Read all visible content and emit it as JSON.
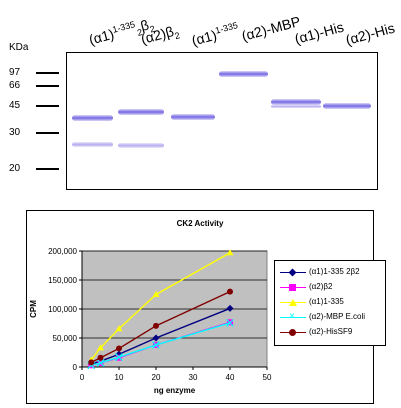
{
  "gel": {
    "unit_label": "KDa",
    "lanes": [
      {
        "main": "(α1)",
        "sup": "1-335",
        "sub": "2",
        "tail": "β",
        "tail_sub": "2"
      },
      {
        "main": "(α2)β",
        "sup": "",
        "sub": "2",
        "tail": "",
        "tail_sub": ""
      },
      {
        "main": "(α1)",
        "sup": "1-335",
        "sub": "",
        "tail": "",
        "tail_sub": ""
      },
      {
        "main": "(α2)-MBP",
        "sup": "",
        "sub": "",
        "tail": "",
        "tail_sub": ""
      },
      {
        "main": "(α1)-His",
        "sup": "",
        "sub": "",
        "tail": "",
        "tail_sub": ""
      },
      {
        "main": "(α2)-His",
        "sup": "",
        "sub": "",
        "tail": "",
        "tail_sub": ""
      }
    ],
    "markers": [
      "97",
      "66",
      "45",
      "30",
      "20"
    ]
  },
  "chart_data": {
    "type": "line",
    "title": "CK2 Activity",
    "xlabel": "ng enzyme",
    "ylabel": "CPM",
    "xlim": [
      0,
      50
    ],
    "ylim": [
      0,
      200000
    ],
    "x_ticks": [
      "0",
      "10",
      "20",
      "30",
      "40",
      "50"
    ],
    "y_ticks": [
      "0",
      "50,000",
      "100,000",
      "150,000",
      "200,000"
    ],
    "grid": true,
    "legend_position": "right",
    "plot_background": "#c0c0c0",
    "series": [
      {
        "name": "(α1)1-335 2β2",
        "color": "#000080",
        "marker": "diamond",
        "x": [
          2.5,
          5,
          10,
          20,
          40
        ],
        "y": [
          5000,
          10000,
          22000,
          50000,
          101000
        ]
      },
      {
        "name": "(α2)β2",
        "color": "#ff00ff",
        "marker": "square",
        "x": [
          2.5,
          5,
          10,
          20,
          40
        ],
        "y": [
          3000,
          7000,
          16000,
          38000,
          77000
        ]
      },
      {
        "name": "(α1)1-335",
        "color": "#ffff00",
        "marker": "triangle",
        "x": [
          2.5,
          5,
          10,
          20,
          40
        ],
        "y": [
          12000,
          33000,
          66000,
          125000,
          197000
        ]
      },
      {
        "name": "(α2)-MBP E.coli",
        "color": "#00ffff",
        "marker": "x",
        "x": [
          2.5,
          5,
          10,
          20,
          40
        ],
        "y": [
          3000,
          7000,
          17000,
          38000,
          76000
        ]
      },
      {
        "name": "(α2)-HisSF9",
        "color": "#800000",
        "marker": "circle",
        "x": [
          2.5,
          5,
          10,
          20,
          40
        ],
        "y": [
          8000,
          16000,
          32000,
          71000,
          130000
        ]
      }
    ]
  }
}
